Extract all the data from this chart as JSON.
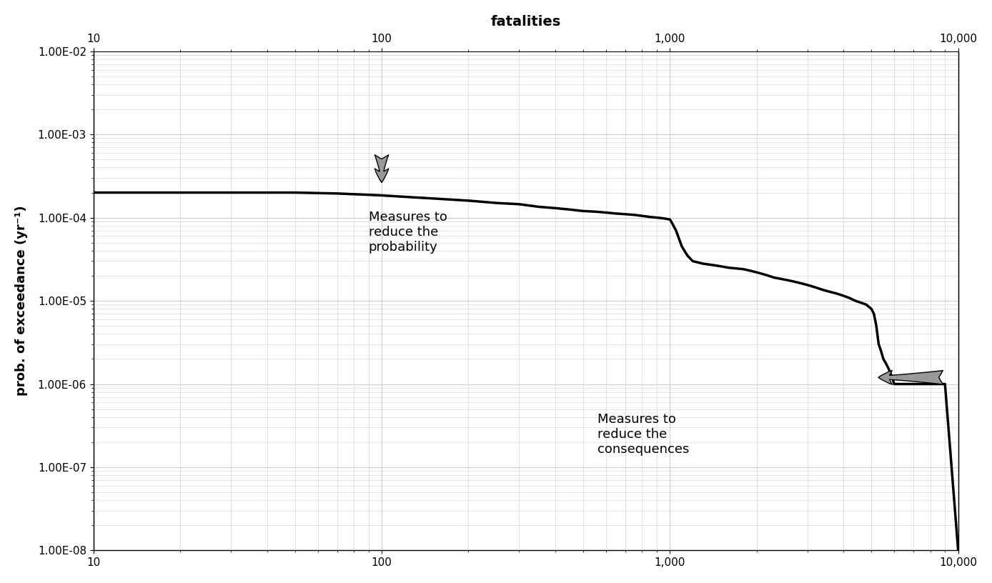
{
  "title": "fatalities",
  "xlabel": "fatalities",
  "ylabel": "prob. of exceedance (yr⁻¹)",
  "xlim": [
    10,
    10000
  ],
  "ylim": [
    1e-08,
    0.01
  ],
  "background_color": "#ffffff",
  "line_color": "#000000",
  "line_width": 2.5,
  "grid_color": "#cccccc",
  "arrow_color": "#999999",
  "annotation1_text": "Measures to\nreduce the\nprobability",
  "annotation2_text": "Measures to\nreduce the\nconsequences",
  "curve_x": [
    10,
    12,
    15,
    20,
    30,
    40,
    50,
    70,
    100,
    130,
    150,
    200,
    250,
    300,
    350,
    400,
    450,
    500,
    550,
    600,
    650,
    700,
    750,
    800,
    850,
    900,
    950,
    1000,
    1010,
    1050,
    1100,
    1150,
    1200,
    1300,
    1400,
    1500,
    1600,
    1700,
    1800,
    1900,
    2000,
    2100,
    2200,
    2300,
    2400,
    2500,
    2600,
    2700,
    2800,
    2900,
    3000,
    3200,
    3400,
    3600,
    3800,
    4000,
    4200,
    4400,
    4600,
    4800,
    5000,
    5100,
    5200,
    5300,
    5400,
    5500,
    5600,
    5700,
    5800,
    5900,
    6000,
    7000,
    8000,
    9000,
    10000
  ],
  "curve_y": [
    0.0002,
    0.0002,
    0.0002,
    0.0002,
    0.0002,
    0.0002,
    0.0002,
    0.000195,
    0.000185,
    0.000175,
    0.00017,
    0.00016,
    0.00015,
    0.000145,
    0.000135,
    0.00013,
    0.000125,
    0.00012,
    0.000118,
    0.000115,
    0.000112,
    0.00011,
    0.000108,
    0.000105,
    0.000102,
    0.0001,
    9.8e-05,
    9.5e-05,
    9e-05,
    7e-05,
    4.5e-05,
    3.5e-05,
    3e-05,
    2.8e-05,
    2.7e-05,
    2.6e-05,
    2.5e-05,
    2.45e-05,
    2.4e-05,
    2.3e-05,
    2.2e-05,
    2.1e-05,
    2e-05,
    1.9e-05,
    1.85e-05,
    1.8e-05,
    1.75e-05,
    1.7e-05,
    1.65e-05,
    1.6e-05,
    1.55e-05,
    1.45e-05,
    1.35e-05,
    1.28e-05,
    1.22e-05,
    1.15e-05,
    1.08e-05,
    1e-05,
    9.5e-06,
    9e-06,
    8e-06,
    7e-06,
    5e-06,
    3e-06,
    2.5e-06,
    2e-06,
    1.8e-06,
    1.6e-06,
    1.4e-06,
    1.2e-06,
    1e-06,
    1e-06,
    1e-06,
    1e-06,
    1e-08
  ]
}
